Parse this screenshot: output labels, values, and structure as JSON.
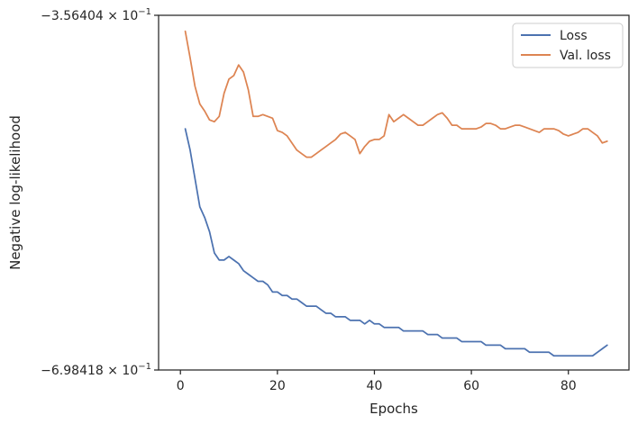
{
  "chart_data": {
    "type": "line",
    "xlabel": "Epochs",
    "ylabel": "Negative log-likelihood",
    "x_ticks": [
      0,
      20,
      40,
      60,
      80
    ],
    "y_tick_labels": [
      {
        "value": 0,
        "base": "−3.56404 × 10",
        "exp": "−1"
      },
      {
        "value": 100,
        "base": "−6.98418 × 10",
        "exp": "−1"
      }
    ],
    "xlim": [
      -4.5,
      92.5
    ],
    "ylim": [
      0,
      100
    ],
    "y_note": "y values are percent of distance from top bound (-0.356404) to bottom bound (-0.698418) on a log-scaled axis",
    "legend_position": "upper right",
    "series": [
      {
        "name": "Loss",
        "color": "#4c72b0",
        "x": [
          1,
          2,
          3,
          4,
          5,
          6,
          7,
          8,
          9,
          10,
          11,
          12,
          13,
          14,
          15,
          16,
          17,
          18,
          19,
          20,
          21,
          22,
          23,
          24,
          25,
          26,
          27,
          28,
          29,
          30,
          31,
          32,
          33,
          34,
          35,
          36,
          37,
          38,
          39,
          40,
          41,
          42,
          43,
          44,
          45,
          46,
          47,
          48,
          49,
          50,
          51,
          52,
          53,
          54,
          55,
          56,
          57,
          58,
          59,
          60,
          61,
          62,
          63,
          64,
          65,
          66,
          67,
          68,
          69,
          70,
          71,
          72,
          73,
          74,
          75,
          76,
          77,
          78,
          79,
          80,
          81,
          82,
          83,
          84,
          85,
          86,
          87,
          88
        ],
        "values": [
          32,
          38,
          46,
          54,
          57,
          61,
          67,
          69,
          69,
          68,
          69,
          70,
          72,
          73,
          74,
          75,
          75,
          76,
          78,
          78,
          79,
          79,
          80,
          80,
          81,
          82,
          82,
          82,
          83,
          84,
          84,
          85,
          85,
          85,
          86,
          86,
          86,
          87,
          86,
          87,
          87,
          88,
          88,
          88,
          88,
          89,
          89,
          89,
          89,
          89,
          90,
          90,
          90,
          91,
          91,
          91,
          91,
          92,
          92,
          92,
          92,
          92,
          93,
          93,
          93,
          93,
          94,
          94,
          94,
          94,
          94,
          95,
          95,
          95,
          95,
          95,
          96,
          96,
          96,
          96,
          96,
          96,
          96,
          96,
          96,
          95,
          94,
          93
        ]
      },
      {
        "name": "Val. loss",
        "color": "#dd8452",
        "x": [
          1,
          2,
          3,
          4,
          5,
          6,
          7,
          8,
          9,
          10,
          11,
          12,
          13,
          14,
          15,
          16,
          17,
          18,
          19,
          20,
          21,
          22,
          23,
          24,
          25,
          26,
          27,
          28,
          29,
          30,
          31,
          32,
          33,
          34,
          35,
          36,
          37,
          38,
          39,
          40,
          41,
          42,
          43,
          44,
          45,
          46,
          47,
          48,
          49,
          50,
          51,
          52,
          53,
          54,
          55,
          56,
          57,
          58,
          59,
          60,
          61,
          62,
          63,
          64,
          65,
          66,
          67,
          68,
          69,
          70,
          71,
          72,
          73,
          74,
          75,
          76,
          77,
          78,
          79,
          80,
          81,
          82,
          83,
          84,
          85,
          86,
          87,
          88
        ],
        "values": [
          4.5,
          12,
          20,
          25,
          27,
          29.5,
          30,
          28.5,
          22,
          18,
          17,
          14,
          16,
          21,
          28.5,
          28.5,
          28,
          28.5,
          29,
          32.5,
          33,
          34,
          36,
          38,
          39,
          40,
          40,
          39,
          38,
          37,
          36,
          35,
          33.5,
          33,
          34,
          35,
          39,
          37,
          35.5,
          35,
          35,
          34,
          28,
          30,
          29,
          28,
          29,
          30,
          31,
          31,
          30,
          29,
          28,
          27.5,
          29,
          31,
          31,
          32,
          32,
          32,
          32,
          31.5,
          30.5,
          30.5,
          31,
          32,
          32,
          31.5,
          31,
          31,
          31.5,
          32,
          32.5,
          33,
          32,
          32,
          32,
          32.5,
          33.5,
          34,
          33.5,
          33,
          32,
          32,
          33,
          34,
          36,
          35.5
        ]
      }
    ]
  }
}
